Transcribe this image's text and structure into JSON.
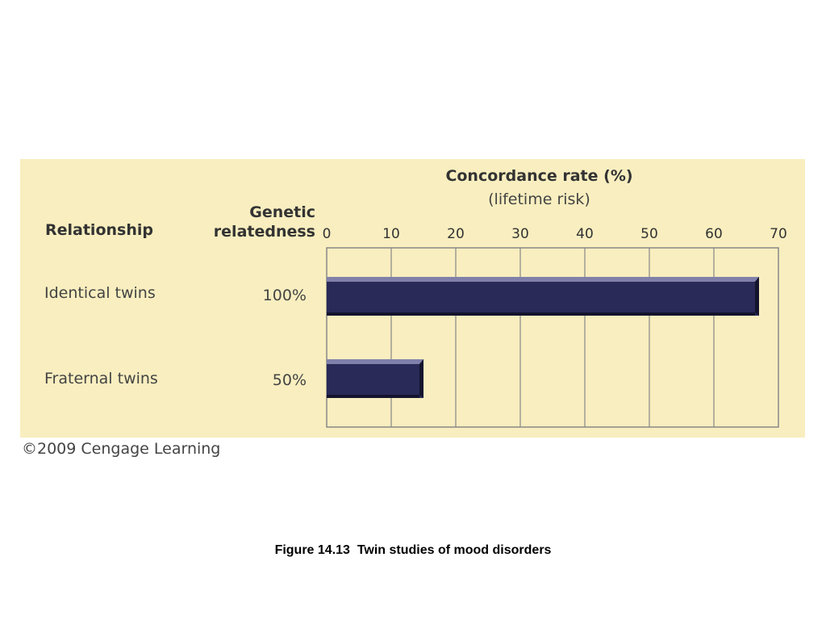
{
  "headers": {
    "relationship": "Relationship",
    "genetic_line1": "Genetic",
    "genetic_line2": "relatedness"
  },
  "rows": [
    {
      "relationship": "Identical twins",
      "relatedness": "100%"
    },
    {
      "relationship": "Fraternal twins",
      "relatedness": "50%"
    }
  ],
  "chart_data": {
    "type": "bar",
    "orientation": "horizontal",
    "title": "Concordance rate (%)",
    "subtitle": "(lifetime risk)",
    "categories": [
      "Identical twins",
      "Fraternal twins"
    ],
    "values": [
      67,
      15
    ],
    "xlim": [
      0,
      70
    ],
    "ticks": [
      "0",
      "10",
      "20",
      "30",
      "40",
      "50",
      "60",
      "70"
    ],
    "grid": true,
    "colors": {
      "bar": "#2a2a58",
      "bar_highlight": "#8080ab",
      "bar_shadow": "#14142e",
      "panel": "#f8eebf",
      "grid": "#888888"
    }
  },
  "copyright": "©2009 Cengage Learning",
  "caption": "Figure 14.13  Twin studies of mood disorders"
}
